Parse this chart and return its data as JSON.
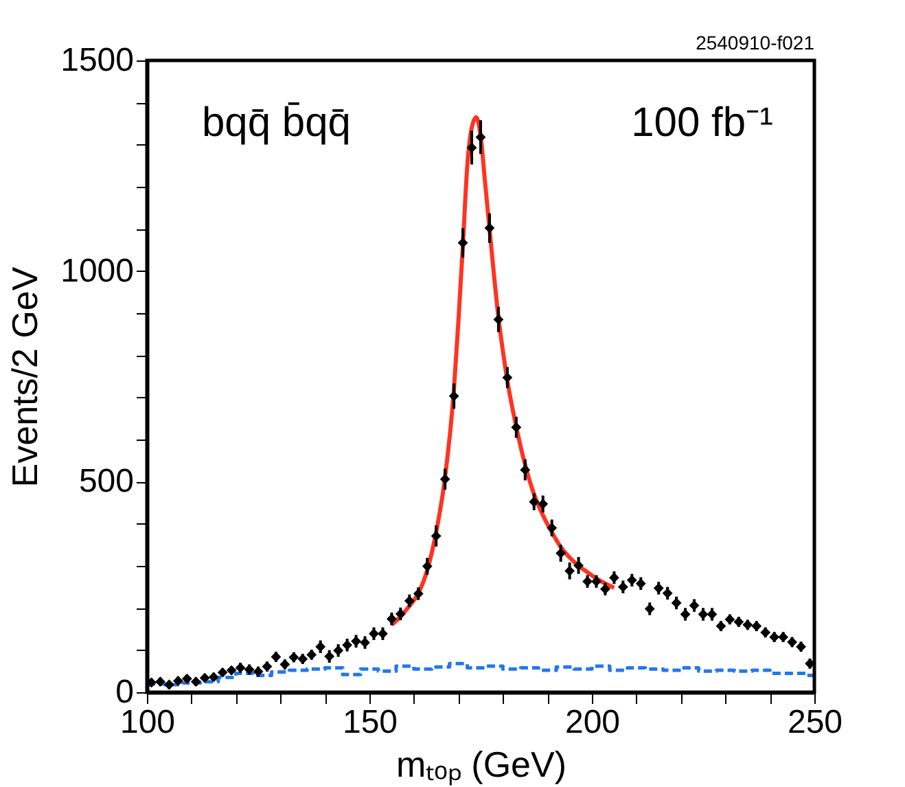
{
  "chart_data": {
    "type": "scatter",
    "xlabel": "mₜₒₚ (GeV)",
    "ylabel": "Events/2 GeV",
    "annotations": [
      "bqq̄ b̄qq̄",
      "100 fb⁻¹",
      "2540910-f021"
    ],
    "xlim": [
      100,
      250
    ],
    "ylim": [
      0,
      1500
    ],
    "xticks": [
      100,
      {
        "value": 110,
        "label": null
      },
      {
        "value": 120,
        "label": null
      },
      {
        "value": 130,
        "label": null
      },
      {
        "value": 140,
        "label": null
      },
      150,
      {
        "value": 160,
        "label": null
      },
      {
        "value": 170,
        "label": null
      },
      {
        "value": 180,
        "label": null
      },
      {
        "value": 190,
        "label": null
      },
      200,
      {
        "value": 210,
        "label": null
      },
      {
        "value": 220,
        "label": null
      },
      {
        "value": 230,
        "label": null
      },
      {
        "value": 240,
        "label": null
      },
      250
    ],
    "yticks": [
      0,
      {
        "value": 100,
        "label": null
      },
      {
        "value": 200,
        "label": null
      },
      {
        "value": 300,
        "label": null
      },
      {
        "value": 400,
        "label": null
      },
      500,
      {
        "value": 600,
        "label": null
      },
      {
        "value": 700,
        "label": null
      },
      {
        "value": 800,
        "label": null
      },
      {
        "value": 900,
        "label": null
      },
      1000,
      {
        "value": 1100,
        "label": null
      },
      {
        "value": 1200,
        "label": null
      },
      {
        "value": 1300,
        "label": null
      },
      {
        "value": 1400,
        "label": null
      },
      1500
    ],
    "grid": false,
    "series": [
      {
        "marker": "diamond",
        "color": "#000000",
        "x": [
          101,
          103,
          105,
          107,
          109,
          111,
          113,
          115,
          117,
          119,
          121,
          123,
          125,
          127,
          129,
          131,
          133,
          135,
          137,
          139,
          141,
          143,
          145,
          147,
          149,
          151,
          153,
          155,
          157,
          159,
          161,
          163,
          165,
          167,
          169,
          171,
          173,
          175,
          177,
          179,
          181,
          183,
          185,
          187,
          189,
          191,
          193,
          195,
          197,
          199,
          201,
          203,
          205,
          207,
          209,
          211,
          213,
          215,
          217,
          219,
          221,
          223,
          225,
          227,
          229,
          231,
          233,
          235,
          237,
          239,
          241,
          243,
          245,
          247,
          249
        ],
        "values": [
          23,
          25,
          18,
          27,
          32,
          25,
          34,
          36,
          47,
          52,
          58,
          54,
          49,
          61,
          84,
          66,
          83,
          79,
          89,
          108,
          85,
          99,
          112,
          121,
          118,
          139,
          139,
          174,
          186,
          217,
          234,
          299,
          371,
          506,
          703,
          1067,
          1293,
          1318,
          1102,
          885,
          747,
          629,
          528,
          452,
          447,
          390,
          330,
          288,
          301,
          263,
          263,
          245,
          272,
          250,
          266,
          258,
          198,
          247,
          235,
          212,
          185,
          206,
          185,
          185,
          157,
          173,
          167,
          160,
          157,
          142,
          131,
          131,
          119,
          108,
          68
        ],
        "errors": [
          10,
          10,
          10,
          10,
          10,
          10,
          10,
          10,
          10,
          10,
          12,
          12,
          12,
          12,
          12,
          12,
          12,
          12,
          12,
          15,
          15,
          15,
          15,
          15,
          15,
          15,
          15,
          15,
          15,
          15,
          15,
          20,
          25,
          25,
          30,
          35,
          40,
          40,
          35,
          30,
          25,
          25,
          25,
          20,
          20,
          20,
          20,
          20,
          20,
          15,
          15,
          15,
          15,
          15,
          15,
          15,
          15,
          15,
          15,
          15,
          15,
          15,
          15,
          15,
          12,
          12,
          12,
          12,
          12,
          12,
          12,
          12,
          12,
          12,
          12
        ]
      },
      {
        "type": "line",
        "color": "#ff3322",
        "line_style": "solid",
        "marker": "none",
        "x": [
          155,
          157,
          159,
          161,
          163,
          165,
          167,
          169,
          170,
          171,
          172,
          173,
          174,
          175,
          176,
          177,
          178,
          179,
          180,
          181,
          183,
          185,
          187,
          189,
          191,
          193,
          195,
          197,
          199,
          201,
          203,
          205
        ],
        "values": [
          160,
          180,
          205,
          235,
          290,
          380,
          510,
          720,
          880,
          1060,
          1250,
          1340,
          1365,
          1320,
          1210,
          1100,
          990,
          890,
          810,
          740,
          630,
          540,
          470,
          420,
          380,
          345,
          320,
          300,
          285,
          270,
          258,
          248
        ]
      },
      {
        "type": "step",
        "color": "#2277ee",
        "line_style": "dashed",
        "marker": "none",
        "x": [
          100,
          104,
          108,
          112,
          116,
          120,
          124,
          128,
          132,
          136,
          140,
          144,
          148,
          152,
          156,
          160,
          164,
          168,
          172,
          176,
          180,
          184,
          188,
          192,
          196,
          200,
          204,
          208,
          212,
          216,
          220,
          224,
          228,
          232,
          236,
          240,
          244,
          248,
          250
        ],
        "values": [
          20,
          18,
          22,
          25,
          35,
          45,
          40,
          48,
          52,
          55,
          58,
          42,
          55,
          50,
          62,
          55,
          60,
          68,
          58,
          62,
          55,
          58,
          52,
          60,
          55,
          62,
          52,
          58,
          55,
          52,
          58,
          50,
          52,
          50,
          52,
          45,
          45,
          40,
          25
        ]
      }
    ]
  }
}
